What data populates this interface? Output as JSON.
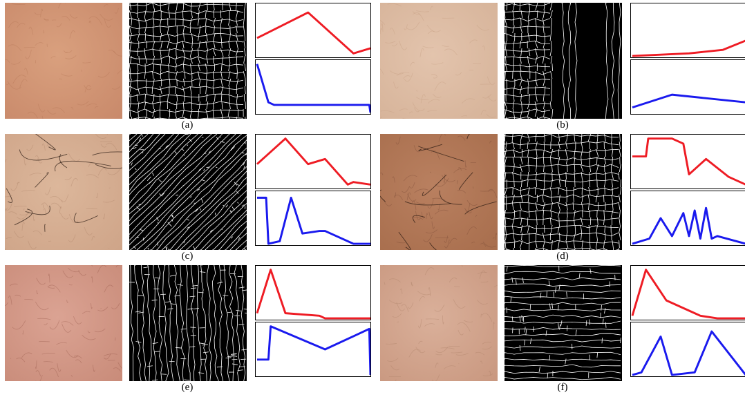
{
  "colors": {
    "top_curve": "#ee1c24",
    "bottom_curve": "#1a1aee",
    "frame": "#000000"
  },
  "panels": [
    {
      "label": "(a)",
      "skin": {
        "base": "#c98a6b",
        "mid": "#d9a07e",
        "lines": "#b0704f",
        "hair": false
      },
      "seg": {
        "style": "cells"
      },
      "chart_data": {
        "type": "line",
        "series": [
          {
            "color": "top_curve",
            "x": [
              0,
              0.45,
              0.85,
              1
            ],
            "y": [
              0.35,
              0.85,
              0.05,
              0.15
            ]
          },
          {
            "color": "bottom_curve",
            "x": [
              0,
              0.1,
              0.15,
              0.99,
              1
            ],
            "y": [
              0.95,
              0.2,
              0.15,
              0.15,
              0.0
            ]
          }
        ]
      }
    },
    {
      "label": "(b)",
      "skin": {
        "base": "#d6b399",
        "mid": "#e3c4ad",
        "lines": "#c0987c",
        "hair": false
      },
      "seg": {
        "style": "mixed"
      },
      "chart_data": {
        "type": "line",
        "series": [
          {
            "color": "top_curve",
            "x": [
              0,
              0.5,
              0.8,
              1
            ],
            "y": [
              0.0,
              0.05,
              0.12,
              0.3
            ]
          },
          {
            "color": "bottom_curve",
            "x": [
              0,
              0.35,
              1
            ],
            "y": [
              0.1,
              0.35,
              0.2
            ]
          }
        ]
      }
    },
    {
      "label": "(c)",
      "skin": {
        "base": "#cfa589",
        "mid": "#dcb79b",
        "lines": "#a57a60",
        "hair": true
      },
      "seg": {
        "style": "diagonal"
      },
      "chart_data": {
        "type": "line",
        "series": [
          {
            "color": "top_curve",
            "x": [
              0,
              0.25,
              0.45,
              0.6,
              0.7,
              0.8,
              0.85,
              1
            ],
            "y": [
              0.45,
              0.95,
              0.45,
              0.55,
              0.3,
              0.05,
              0.1,
              0.05
            ]
          },
          {
            "color": "bottom_curve",
            "x": [
              0,
              0.08,
              0.1,
              0.2,
              0.3,
              0.4,
              0.55,
              0.6,
              0.85,
              1
            ],
            "y": [
              0.9,
              0.9,
              0.0,
              0.05,
              0.9,
              0.2,
              0.25,
              0.25,
              0.0,
              0.0
            ]
          }
        ]
      }
    },
    {
      "label": "(d)",
      "skin": {
        "base": "#a86e4d",
        "mid": "#b98060",
        "lines": "#6f4330",
        "hair": true
      },
      "seg": {
        "style": "cells"
      },
      "chart_data": {
        "type": "line",
        "series": [
          {
            "color": "top_curve",
            "x": [
              0,
              0.12,
              0.14,
              0.35,
              0.45,
              0.5,
              0.65,
              0.85,
              1
            ],
            "y": [
              0.6,
              0.6,
              0.95,
              0.95,
              0.85,
              0.25,
              0.55,
              0.2,
              0.05
            ]
          },
          {
            "color": "bottom_curve",
            "x": [
              0,
              0.15,
              0.25,
              0.35,
              0.45,
              0.5,
              0.55,
              0.6,
              0.65,
              0.7,
              0.75,
              1
            ],
            "y": [
              0.0,
              0.1,
              0.5,
              0.15,
              0.6,
              0.15,
              0.65,
              0.1,
              0.7,
              0.1,
              0.15,
              0.0
            ]
          }
        ]
      }
    },
    {
      "label": "(e)",
      "skin": {
        "base": "#c98c7a",
        "mid": "#dba393",
        "lines": "#8c4c3f",
        "hair": false
      },
      "seg": {
        "style": "vertical"
      },
      "chart_data": {
        "type": "line",
        "series": [
          {
            "color": "top_curve",
            "x": [
              0,
              0.12,
              0.25,
              0.55,
              0.6,
              0.75,
              1
            ],
            "y": [
              0.1,
              0.95,
              0.1,
              0.05,
              0.0,
              0.0,
              0.0
            ]
          },
          {
            "color": "bottom_curve",
            "x": [
              0,
              0.1,
              0.12,
              0.6,
              0.99,
              1
            ],
            "y": [
              0.3,
              0.3,
              0.95,
              0.5,
              0.9,
              0.0
            ]
          }
        ]
      }
    },
    {
      "label": "(f)",
      "skin": {
        "base": "#c99880",
        "mid": "#dab09a",
        "lines": "#a77a62",
        "hair": false
      },
      "seg": {
        "style": "horizontal"
      },
      "chart_data": {
        "type": "line",
        "series": [
          {
            "color": "top_curve",
            "x": [
              0,
              0.12,
              0.3,
              0.55,
              0.6,
              0.75,
              1
            ],
            "y": [
              0.05,
              0.95,
              0.35,
              0.1,
              0.05,
              0.0,
              0.0
            ]
          },
          {
            "color": "bottom_curve",
            "x": [
              0,
              0.08,
              0.25,
              0.35,
              0.55,
              0.7,
              1
            ],
            "y": [
              0.0,
              0.05,
              0.75,
              0.0,
              0.05,
              0.85,
              0.0
            ]
          }
        ]
      }
    }
  ]
}
